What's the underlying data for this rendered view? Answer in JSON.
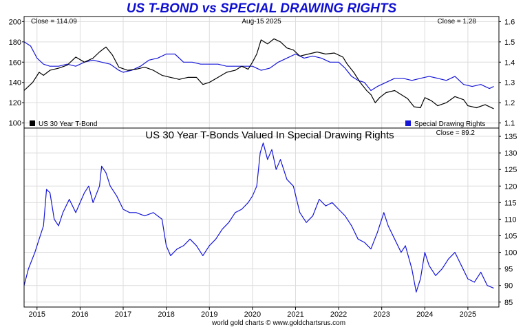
{
  "title": "US T-BOND vs SPECIAL DRAWING RIGHTS",
  "footer": "world gold charts © www.goldchartsrus.com",
  "colors": {
    "title": "#1010d0",
    "tbond": "#000000",
    "sdr": "#1515d8",
    "ratio": "#1515d8",
    "grid": "#dcdcdc"
  },
  "chart_data": [
    {
      "type": "line",
      "panel": "top",
      "header_left": "Close = 114.09",
      "header_center": "Aug-15  2025",
      "header_right": "Close = 1.28",
      "legend_left": "US 30 Year T-Bond",
      "legend_right": "Special Drawing Rights",
      "grid": true,
      "left_axis": {
        "ticks": [
          100,
          120,
          140,
          160,
          180,
          200
        ],
        "range": [
          95,
          205
        ]
      },
      "right_axis": {
        "ticks": [
          1.1,
          1.2,
          1.3,
          1.4,
          1.5,
          1.6
        ],
        "range": [
          1.075,
          1.625
        ]
      },
      "series": [
        {
          "name": "US 30 Year T-Bond",
          "axis": "left",
          "points": [
            [
              2014.7,
              132
            ],
            [
              2014.9,
              140
            ],
            [
              2015.05,
              150
            ],
            [
              2015.15,
              147
            ],
            [
              2015.3,
              152
            ],
            [
              2015.5,
              154
            ],
            [
              2015.7,
              157
            ],
            [
              2015.9,
              165
            ],
            [
              2016.1,
              160
            ],
            [
              2016.3,
              164
            ],
            [
              2016.45,
              170
            ],
            [
              2016.6,
              175
            ],
            [
              2016.75,
              167
            ],
            [
              2016.9,
              155
            ],
            [
              2017.1,
              152
            ],
            [
              2017.3,
              153
            ],
            [
              2017.5,
              155
            ],
            [
              2017.7,
              152
            ],
            [
              2017.9,
              147
            ],
            [
              2018.1,
              145
            ],
            [
              2018.3,
              143
            ],
            [
              2018.5,
              145
            ],
            [
              2018.7,
              145
            ],
            [
              2018.85,
              138
            ],
            [
              2019.0,
              140
            ],
            [
              2019.2,
              145
            ],
            [
              2019.4,
              150
            ],
            [
              2019.6,
              152
            ],
            [
              2019.75,
              156
            ],
            [
              2019.9,
              153
            ],
            [
              2020.0,
              160
            ],
            [
              2020.1,
              168
            ],
            [
              2020.2,
              182
            ],
            [
              2020.35,
              178
            ],
            [
              2020.5,
              183
            ],
            [
              2020.65,
              180
            ],
            [
              2020.8,
              174
            ],
            [
              2020.95,
              172
            ],
            [
              2021.1,
              166
            ],
            [
              2021.3,
              168
            ],
            [
              2021.5,
              170
            ],
            [
              2021.7,
              168
            ],
            [
              2021.9,
              169
            ],
            [
              2022.1,
              165
            ],
            [
              2022.2,
              158
            ],
            [
              2022.35,
              150
            ],
            [
              2022.5,
              140
            ],
            [
              2022.65,
              132
            ],
            [
              2022.75,
              128
            ],
            [
              2022.85,
              120
            ],
            [
              2022.95,
              125
            ],
            [
              2023.1,
              130
            ],
            [
              2023.3,
              132
            ],
            [
              2023.45,
              128
            ],
            [
              2023.6,
              124
            ],
            [
              2023.75,
              116
            ],
            [
              2023.9,
              115
            ],
            [
              2024.0,
              125
            ],
            [
              2024.15,
              122
            ],
            [
              2024.3,
              117
            ],
            [
              2024.5,
              120
            ],
            [
              2024.7,
              126
            ],
            [
              2024.9,
              123
            ],
            [
              2025.0,
              117
            ],
            [
              2025.2,
              115
            ],
            [
              2025.4,
              118
            ],
            [
              2025.6,
              114.09
            ]
          ]
        },
        {
          "name": "Special Drawing Rights",
          "axis": "right",
          "points": [
            [
              2014.7,
              1.5
            ],
            [
              2014.85,
              1.48
            ],
            [
              2015.0,
              1.42
            ],
            [
              2015.15,
              1.39
            ],
            [
              2015.3,
              1.38
            ],
            [
              2015.5,
              1.38
            ],
            [
              2015.7,
              1.39
            ],
            [
              2015.9,
              1.38
            ],
            [
              2016.1,
              1.4
            ],
            [
              2016.3,
              1.41
            ],
            [
              2016.5,
              1.4
            ],
            [
              2016.7,
              1.39
            ],
            [
              2016.9,
              1.36
            ],
            [
              2017.0,
              1.35
            ],
            [
              2017.2,
              1.36
            ],
            [
              2017.4,
              1.38
            ],
            [
              2017.6,
              1.41
            ],
            [
              2017.8,
              1.42
            ],
            [
              2018.0,
              1.44
            ],
            [
              2018.2,
              1.44
            ],
            [
              2018.4,
              1.4
            ],
            [
              2018.6,
              1.4
            ],
            [
              2018.8,
              1.39
            ],
            [
              2019.0,
              1.39
            ],
            [
              2019.2,
              1.39
            ],
            [
              2019.4,
              1.38
            ],
            [
              2019.6,
              1.38
            ],
            [
              2019.8,
              1.38
            ],
            [
              2020.0,
              1.38
            ],
            [
              2020.2,
              1.36
            ],
            [
              2020.4,
              1.37
            ],
            [
              2020.6,
              1.4
            ],
            [
              2020.8,
              1.42
            ],
            [
              2021.0,
              1.44
            ],
            [
              2021.2,
              1.42
            ],
            [
              2021.4,
              1.43
            ],
            [
              2021.6,
              1.42
            ],
            [
              2021.8,
              1.4
            ],
            [
              2022.0,
              1.4
            ],
            [
              2022.15,
              1.37
            ],
            [
              2022.3,
              1.33
            ],
            [
              2022.45,
              1.31
            ],
            [
              2022.6,
              1.3
            ],
            [
              2022.75,
              1.26
            ],
            [
              2022.9,
              1.28
            ],
            [
              2023.1,
              1.3
            ],
            [
              2023.3,
              1.32
            ],
            [
              2023.5,
              1.32
            ],
            [
              2023.7,
              1.31
            ],
            [
              2023.9,
              1.32
            ],
            [
              2024.1,
              1.33
            ],
            [
              2024.3,
              1.32
            ],
            [
              2024.5,
              1.31
            ],
            [
              2024.7,
              1.33
            ],
            [
              2024.9,
              1.29
            ],
            [
              2025.1,
              1.28
            ],
            [
              2025.3,
              1.29
            ],
            [
              2025.5,
              1.27
            ],
            [
              2025.6,
              1.28
            ]
          ]
        }
      ]
    },
    {
      "type": "line",
      "panel": "bottom",
      "title": "US 30 Year T-Bonds Valued In Special Drawing Rights",
      "header_right": "Close = 89.2",
      "grid": true,
      "x_ticks": [
        2015,
        2016,
        2017,
        2018,
        2019,
        2020,
        2021,
        2022,
        2023,
        2024,
        2025
      ],
      "xlim": [
        2014.7,
        2025.72
      ],
      "right_axis": {
        "ticks": [
          85,
          90,
          95,
          100,
          105,
          110,
          115,
          120,
          125,
          130,
          135
        ],
        "range": [
          83.5,
          137.5
        ]
      },
      "series": [
        {
          "name": "US 30 Year T-Bonds Valued In Special Drawing Rights",
          "axis": "right",
          "points": [
            [
              2014.7,
              90
            ],
            [
              2014.8,
              95
            ],
            [
              2014.95,
              100
            ],
            [
              2015.05,
              104
            ],
            [
              2015.15,
              108
            ],
            [
              2015.22,
              119
            ],
            [
              2015.3,
              118
            ],
            [
              2015.4,
              110
            ],
            [
              2015.5,
              108
            ],
            [
              2015.6,
              112
            ],
            [
              2015.75,
              116
            ],
            [
              2015.9,
              112
            ],
            [
              2016.0,
              115
            ],
            [
              2016.1,
              118
            ],
            [
              2016.2,
              120
            ],
            [
              2016.3,
              115
            ],
            [
              2016.45,
              120
            ],
            [
              2016.5,
              126
            ],
            [
              2016.6,
              124
            ],
            [
              2016.7,
              120
            ],
            [
              2016.85,
              117
            ],
            [
              2017.0,
              113
            ],
            [
              2017.15,
              112
            ],
            [
              2017.3,
              112
            ],
            [
              2017.5,
              111
            ],
            [
              2017.7,
              112
            ],
            [
              2017.9,
              110
            ],
            [
              2018.0,
              102
            ],
            [
              2018.1,
              99
            ],
            [
              2018.25,
              101
            ],
            [
              2018.4,
              102
            ],
            [
              2018.55,
              104
            ],
            [
              2018.7,
              102
            ],
            [
              2018.85,
              99
            ],
            [
              2019.0,
              102
            ],
            [
              2019.15,
              104
            ],
            [
              2019.3,
              107
            ],
            [
              2019.45,
              109
            ],
            [
              2019.6,
              112
            ],
            [
              2019.75,
              113
            ],
            [
              2019.9,
              115
            ],
            [
              2020.0,
              117
            ],
            [
              2020.1,
              120
            ],
            [
              2020.18,
              130
            ],
            [
              2020.25,
              133
            ],
            [
              2020.35,
              128
            ],
            [
              2020.45,
              131
            ],
            [
              2020.55,
              125
            ],
            [
              2020.65,
              128
            ],
            [
              2020.8,
              122
            ],
            [
              2020.95,
              120
            ],
            [
              2021.1,
              112
            ],
            [
              2021.25,
              109
            ],
            [
              2021.4,
              111
            ],
            [
              2021.55,
              116
            ],
            [
              2021.7,
              114
            ],
            [
              2021.85,
              115
            ],
            [
              2022.0,
              113
            ],
            [
              2022.15,
              111
            ],
            [
              2022.3,
              108
            ],
            [
              2022.45,
              104
            ],
            [
              2022.6,
              103
            ],
            [
              2022.75,
              101
            ],
            [
              2022.9,
              106
            ],
            [
              2023.05,
              112
            ],
            [
              2023.15,
              108
            ],
            [
              2023.3,
              104
            ],
            [
              2023.45,
              100
            ],
            [
              2023.55,
              102
            ],
            [
              2023.7,
              95
            ],
            [
              2023.8,
              88
            ],
            [
              2023.9,
              92
            ],
            [
              2024.0,
              100
            ],
            [
              2024.1,
              96
            ],
            [
              2024.25,
              93
            ],
            [
              2024.4,
              95
            ],
            [
              2024.55,
              98
            ],
            [
              2024.7,
              100
            ],
            [
              2024.85,
              96
            ],
            [
              2025.0,
              92
            ],
            [
              2025.15,
              91
            ],
            [
              2025.3,
              94
            ],
            [
              2025.45,
              90
            ],
            [
              2025.6,
              89.2
            ]
          ]
        }
      ]
    }
  ]
}
